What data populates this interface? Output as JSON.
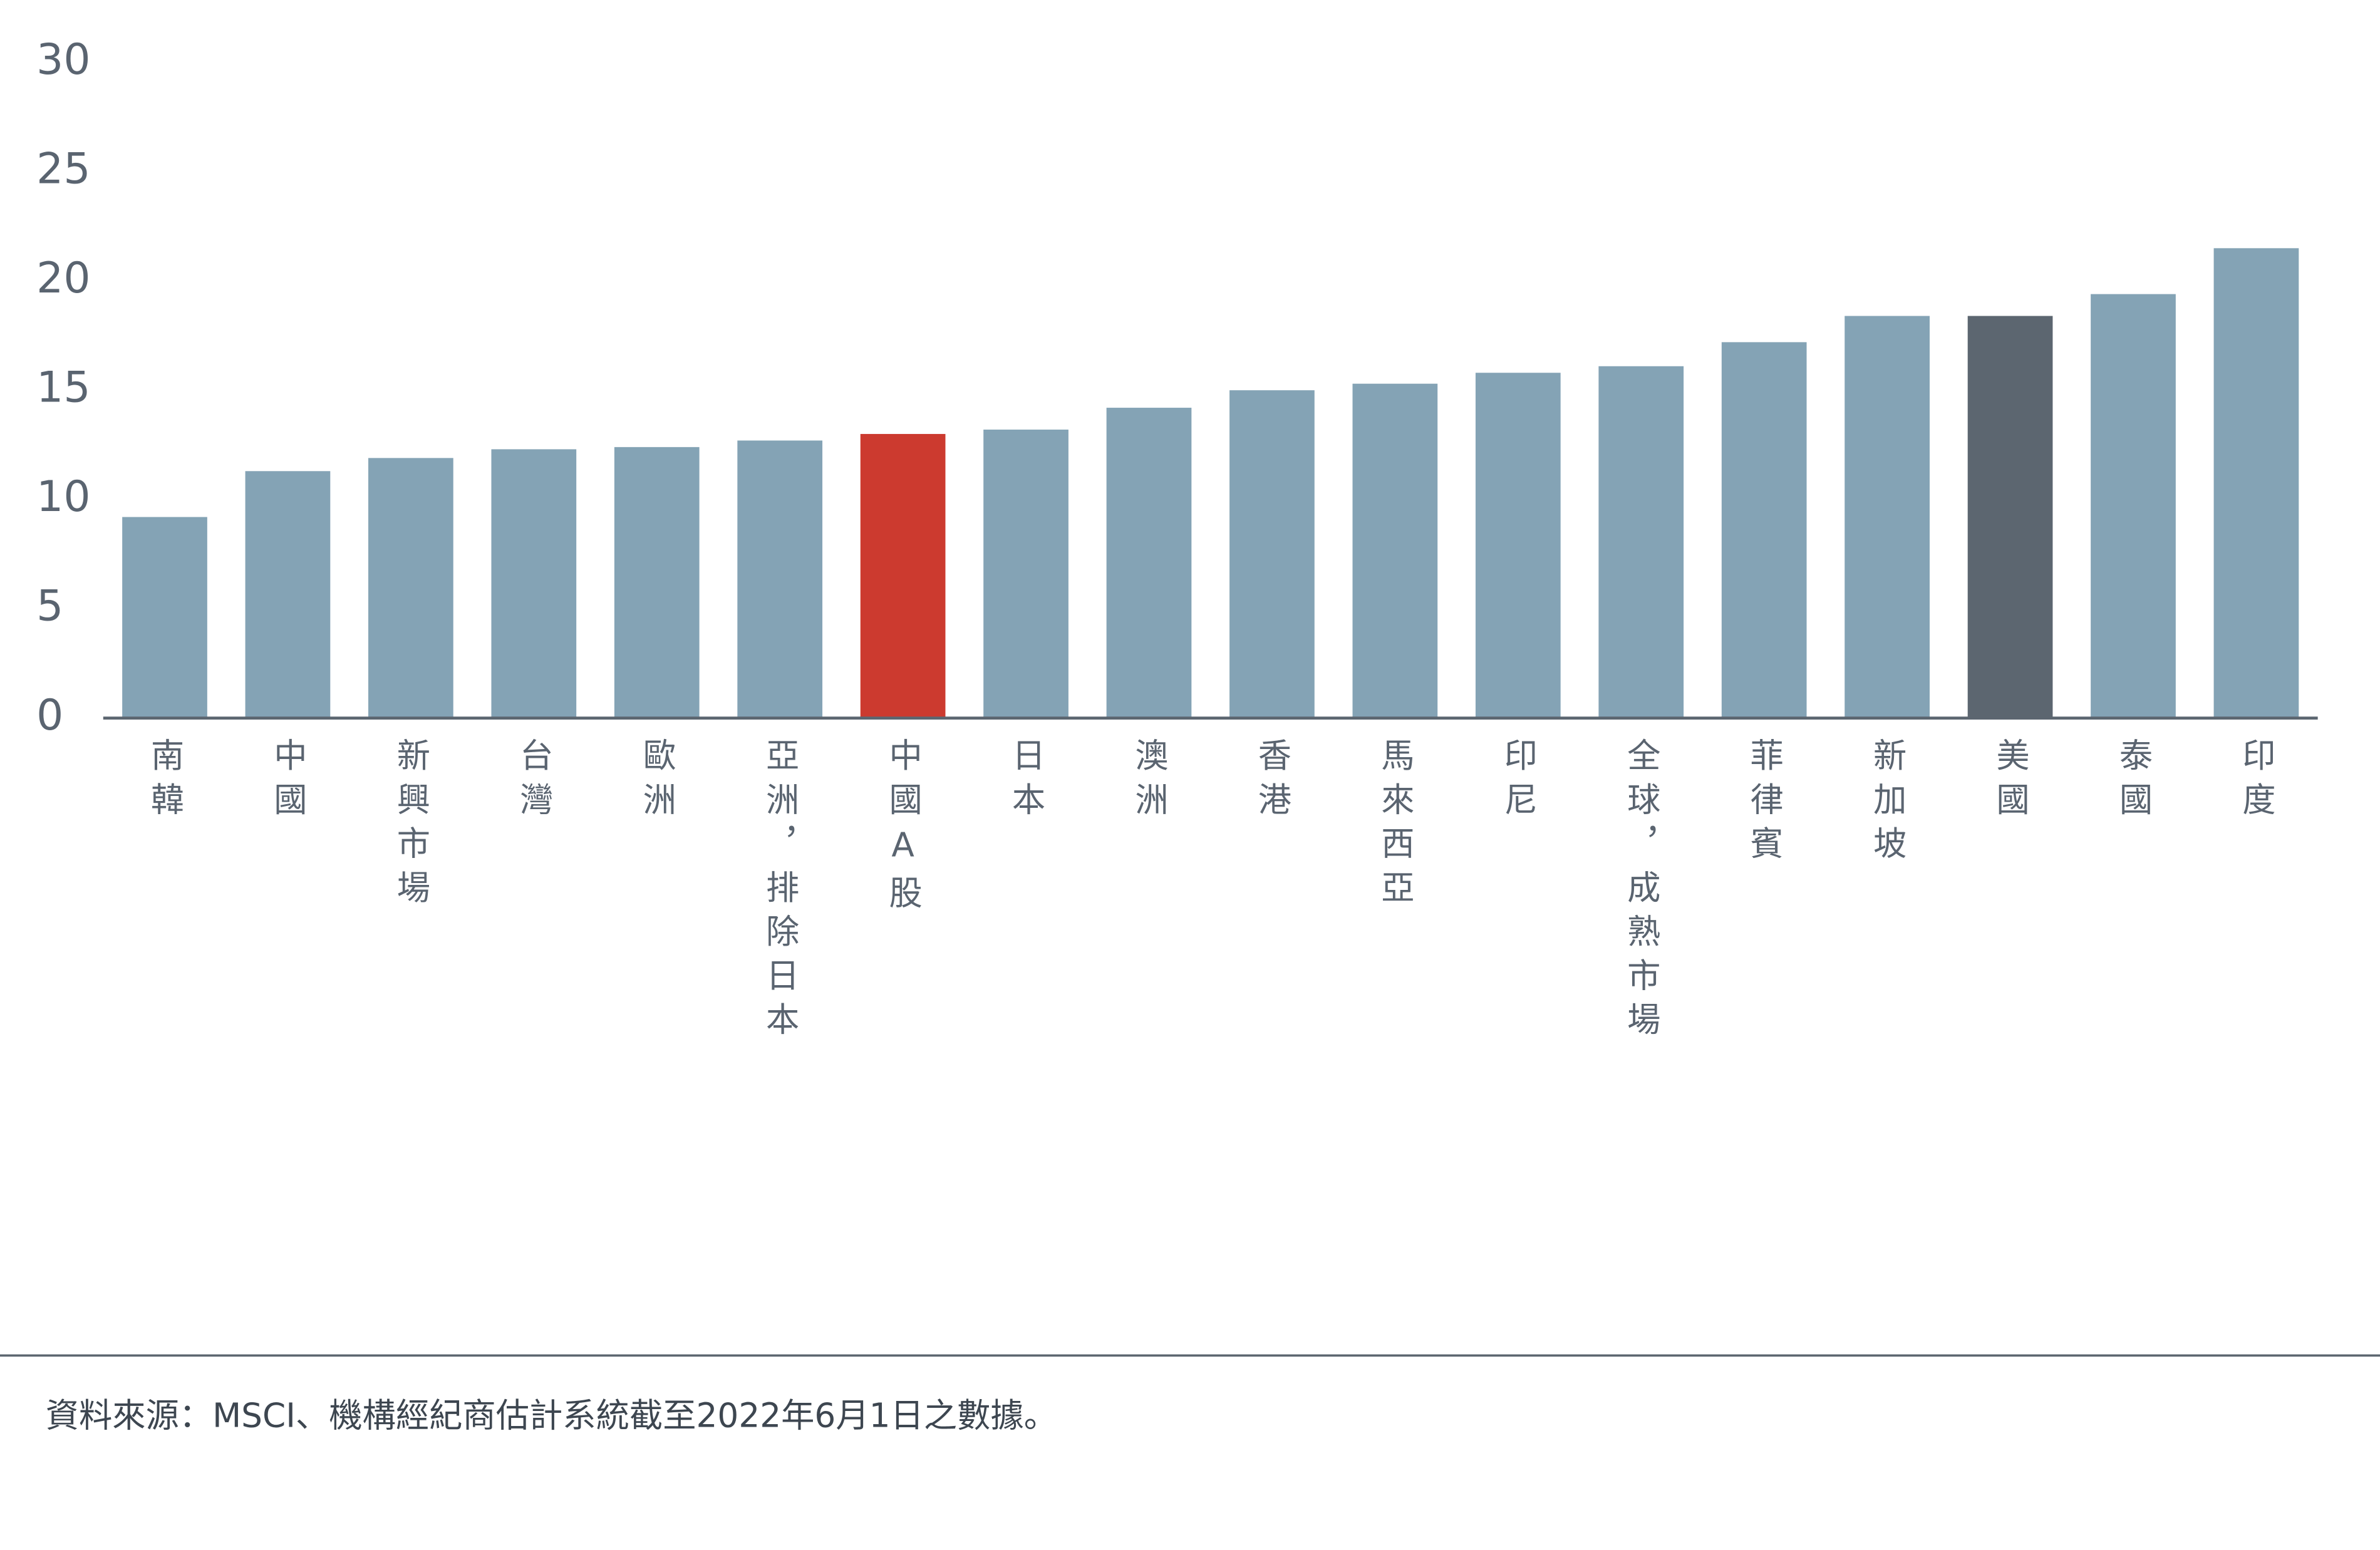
{
  "chart_data": {
    "type": "bar",
    "categories": [
      "南韓",
      "中國",
      "新興市場",
      "台灣",
      "歐洲",
      "亞洲，排除日本",
      "中國A股",
      "日本",
      "澳洲",
      "香港",
      "馬來西亞",
      "印尼",
      "全球，成熟市場",
      "菲律賓",
      "新加坡",
      "美國",
      "泰國",
      "印度"
    ],
    "values": [
      9.2,
      11.3,
      11.9,
      12.3,
      12.4,
      12.7,
      13.0,
      13.2,
      14.2,
      15.0,
      15.3,
      15.8,
      16.1,
      17.2,
      18.4,
      18.4,
      19.4,
      21.5
    ],
    "colors": [
      "#84a3b5",
      "#84a3b5",
      "#84a3b5",
      "#84a3b5",
      "#84a3b5",
      "#84a3b5",
      "#cc3a2f",
      "#84a3b5",
      "#84a3b5",
      "#84a3b5",
      "#84a3b5",
      "#84a3b5",
      "#84a3b5",
      "#84a3b5",
      "#84a3b5",
      "#5c6670",
      "#84a3b5",
      "#84a3b5"
    ],
    "ylim": [
      0,
      30
    ],
    "yticks": [
      0,
      5,
      10,
      15,
      20,
      25,
      30
    ],
    "grid": false,
    "source": "資料來源：MSCI、機構經紀商估計系統截至2022年6月1日之數據。"
  }
}
